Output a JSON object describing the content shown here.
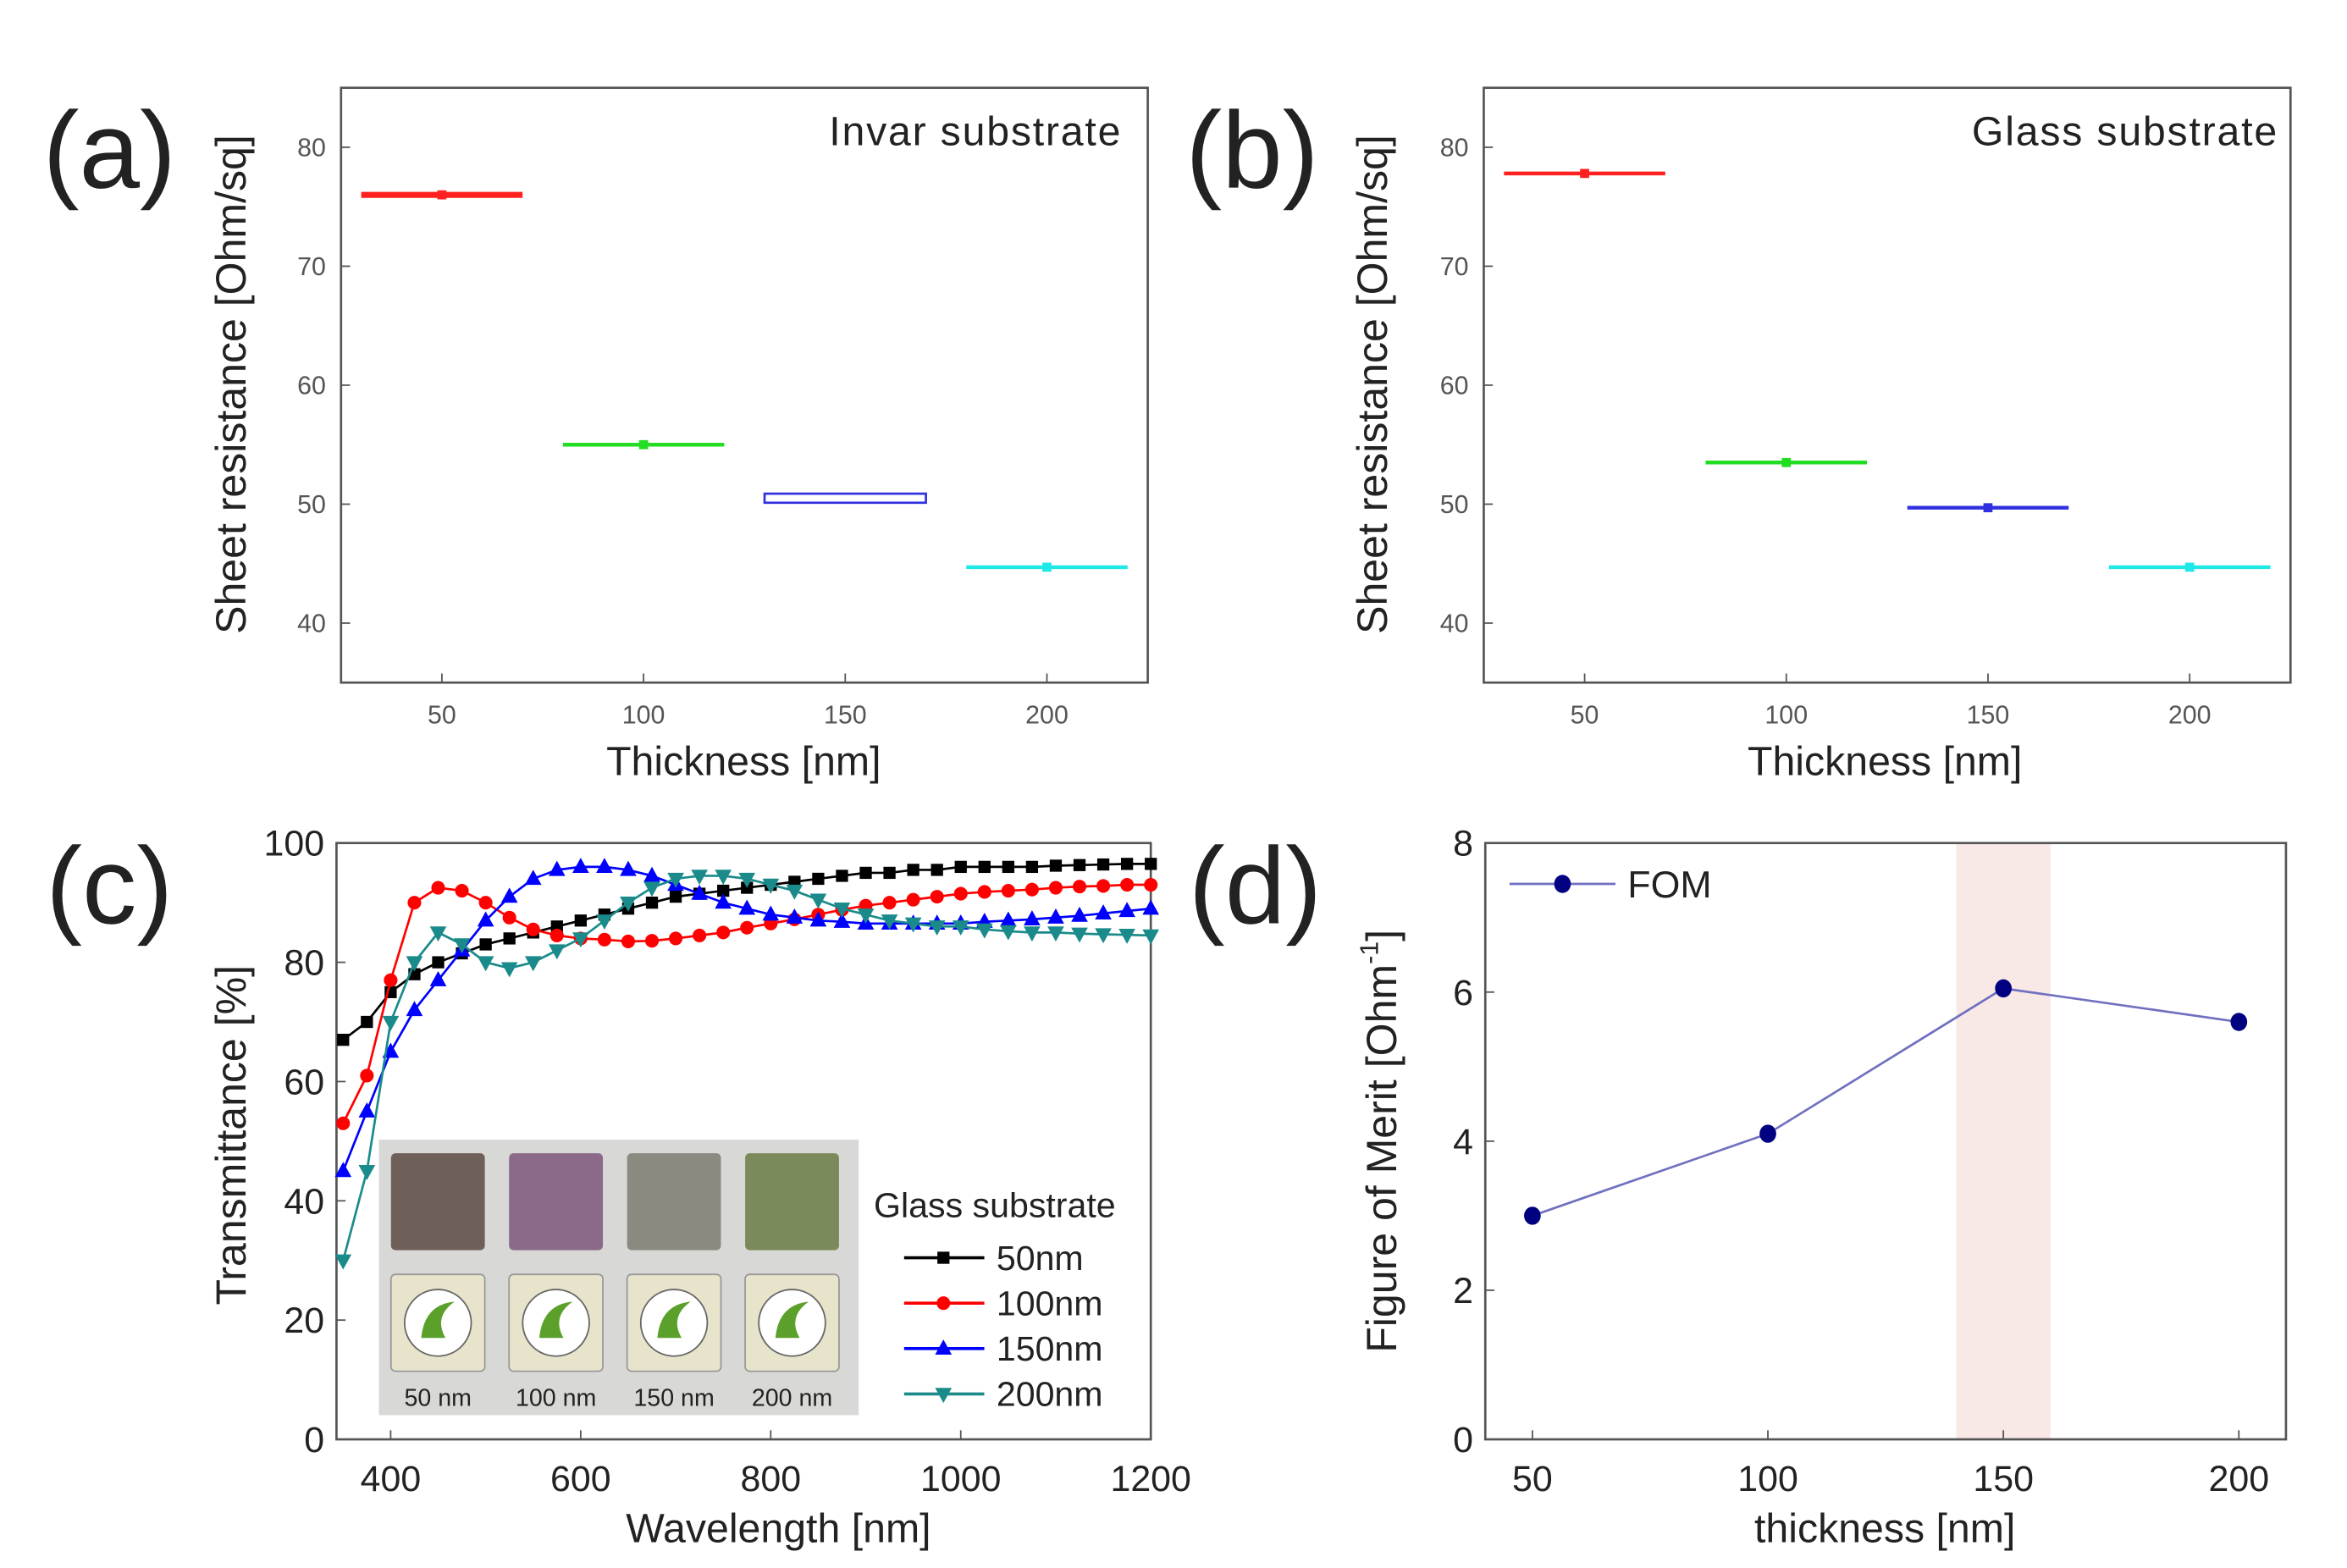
{
  "chart_data": [
    {
      "panel_label": "(a)",
      "type": "scatter",
      "annotation": "Invar substrate",
      "xlabel": "Thickness [nm]",
      "ylabel": "Sheet resistance [Ohm/sq]",
      "xlim": [
        25,
        225
      ],
      "ylim": [
        35,
        85
      ],
      "xticks": [
        50,
        100,
        150,
        200
      ],
      "yticks": [
        40,
        50,
        60,
        70,
        80
      ],
      "x_error_halfwidth": 20,
      "points": [
        {
          "x": 50,
          "y": 76.0,
          "color": "#ff2020",
          "style": "filled"
        },
        {
          "x": 100,
          "y": 55.0,
          "color": "#22dd22",
          "style": "filled"
        },
        {
          "x": 150,
          "y": 50.5,
          "color": "#3030e0",
          "style": "hollow"
        },
        {
          "x": 200,
          "y": 44.7,
          "color": "#20e8e8",
          "style": "filled"
        }
      ]
    },
    {
      "panel_label": "(b)",
      "type": "scatter",
      "annotation": "Glass substrate",
      "xlabel": "Thickness [nm]",
      "ylabel": "Sheet resistance [Ohm/sq]",
      "xlim": [
        25,
        225
      ],
      "ylim": [
        35,
        85
      ],
      "xticks": [
        50,
        100,
        150,
        200
      ],
      "yticks": [
        40,
        50,
        60,
        70,
        80
      ],
      "x_error_halfwidth": 20,
      "points": [
        {
          "x": 50,
          "y": 77.8,
          "color": "#ff2020",
          "style": "filled"
        },
        {
          "x": 100,
          "y": 53.5,
          "color": "#22dd22",
          "style": "filled"
        },
        {
          "x": 150,
          "y": 49.7,
          "color": "#3030e0",
          "style": "filled"
        },
        {
          "x": 200,
          "y": 44.7,
          "color": "#20e8e8",
          "style": "filled"
        }
      ]
    },
    {
      "panel_label": "(c)",
      "type": "line",
      "xlabel": "Wavelength [nm]",
      "ylabel": "Transmittance [%]",
      "xlim": [
        343,
        1200
      ],
      "ylim": [
        0,
        100
      ],
      "xticks": [
        400,
        600,
        800,
        1000,
        1200
      ],
      "yticks": [
        0,
        20,
        40,
        60,
        80,
        100
      ],
      "legend_title": "Glass substrate",
      "inset_labels": [
        "50 nm",
        "100 nm",
        "150 nm",
        "200 nm"
      ],
      "x": [
        350,
        375,
        400,
        425,
        450,
        475,
        500,
        525,
        550,
        575,
        600,
        625,
        650,
        675,
        700,
        725,
        750,
        775,
        800,
        825,
        850,
        875,
        900,
        925,
        950,
        975,
        1000,
        1025,
        1050,
        1075,
        1100,
        1125,
        1150,
        1175,
        1200
      ],
      "series": [
        {
          "name": "50nm",
          "color": "#000000",
          "marker": "square",
          "values": [
            67,
            70,
            75,
            78,
            80,
            81.5,
            83,
            84,
            85,
            86,
            87,
            88,
            89,
            90,
            91,
            91.5,
            92,
            92.5,
            93,
            93.5,
            94,
            94.5,
            95,
            95,
            95.5,
            95.5,
            96,
            96,
            96,
            96,
            96.2,
            96.3,
            96.4,
            96.5,
            96.5
          ]
        },
        {
          "name": "100nm",
          "color": "#ff0000",
          "marker": "circle",
          "values": [
            53,
            61,
            77,
            90,
            92.5,
            92,
            90,
            87.5,
            85.5,
            84.5,
            84,
            83.8,
            83.5,
            83.6,
            84,
            84.5,
            85,
            85.8,
            86.5,
            87.2,
            88,
            88.8,
            89.5,
            90,
            90.5,
            91,
            91.5,
            91.8,
            92,
            92.2,
            92.5,
            92.7,
            92.8,
            93,
            93
          ]
        },
        {
          "name": "150nm",
          "color": "#0000ff",
          "marker": "triangle-up",
          "values": [
            45,
            55,
            65,
            72,
            77,
            82,
            87,
            91,
            94,
            95.5,
            96,
            96,
            95.5,
            94.5,
            93,
            91.5,
            90,
            89,
            88,
            87.5,
            87,
            86.8,
            86.5,
            86.5,
            86.5,
            86.5,
            86.5,
            86.8,
            87,
            87.2,
            87.5,
            87.8,
            88.2,
            88.6,
            89
          ]
        },
        {
          "name": "200nm",
          "color": "#1a8a8a",
          "marker": "triangle-down",
          "values": [
            30,
            45,
            70,
            80,
            85,
            83,
            80,
            79,
            80,
            82,
            84,
            87,
            90,
            92.5,
            94,
            94.5,
            94.5,
            94,
            93,
            92,
            90.5,
            89,
            88,
            87,
            86.5,
            86,
            86,
            85.5,
            85.2,
            85,
            85,
            84.8,
            84.7,
            84.6,
            84.5
          ]
        }
      ]
    },
    {
      "panel_label": "(d)",
      "type": "line",
      "xlabel": "thickness [nm]",
      "ylabel": "Figure of Merit [Ohm",
      "ylabel_sup": "-1",
      "ylabel_end": "]",
      "xlim": [
        40,
        210
      ],
      "ylim": [
        0,
        8
      ],
      "xticks": [
        50,
        100,
        150,
        200
      ],
      "yticks": [
        0,
        2,
        4,
        6,
        8
      ],
      "highlight_band": [
        140,
        160
      ],
      "highlight_color": "#f8e8e6",
      "series": [
        {
          "name": "FOM",
          "color": "#000080",
          "line_color": "#7070c0",
          "x": [
            50,
            100,
            150,
            200
          ],
          "values": [
            3.0,
            4.1,
            6.05,
            5.6
          ]
        }
      ]
    }
  ]
}
